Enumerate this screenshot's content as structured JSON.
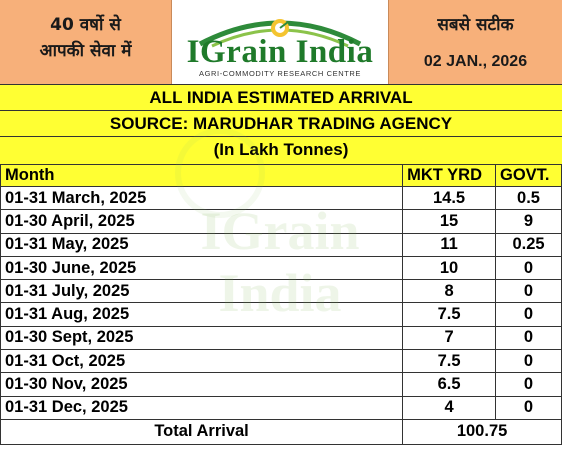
{
  "header": {
    "tagline_line1": "40 वर्षो से",
    "tagline_line2": "आपकी सेवा में",
    "motto": "सबसे सटीक",
    "date": "02 JAN., 2026",
    "logo_name": "IGrain India",
    "logo_subtitle": "AGRI-COMMODITY RESEARCH CENTRE",
    "logo_color": "#1f7a2a"
  },
  "titles": {
    "line1": "ALL INDIA ESTIMATED ARRIVAL",
    "line2": "SOURCE: MARUDHAR TRADING AGENCY",
    "line3": "(In Lakh Tonnes)"
  },
  "table": {
    "columns": [
      "Month",
      "MKT YRD",
      "GOVT."
    ],
    "rows": [
      {
        "month": "01-31 March, 2025",
        "mkt": "14.5",
        "govt": "0.5"
      },
      {
        "month": "01-30 April, 2025",
        "mkt": "15",
        "govt": "9"
      },
      {
        "month": "01-31 May, 2025",
        "mkt": "11",
        "govt": "0.25"
      },
      {
        "month": "01-30 June, 2025",
        "mkt": "10",
        "govt": "0"
      },
      {
        "month": "01-31 July, 2025",
        "mkt": "8",
        "govt": "0"
      },
      {
        "month": "01-31 Aug, 2025",
        "mkt": "7.5",
        "govt": "0"
      },
      {
        "month": "01-30 Sept, 2025",
        "mkt": "7",
        "govt": "0"
      },
      {
        "month": "01-31 Oct, 2025",
        "mkt": "7.5",
        "govt": "0"
      },
      {
        "month": "01-30 Nov, 2025",
        "mkt": "6.5",
        "govt": "0"
      },
      {
        "month": "01-31 Dec, 2025",
        "mkt": "4",
        "govt": "0"
      }
    ],
    "total_label": "Total Arrival",
    "total_value": "100.75"
  },
  "colors": {
    "header_bg": "#f7b07a",
    "title_bg": "#ffff33"
  },
  "watermark_text": "IGrain India"
}
